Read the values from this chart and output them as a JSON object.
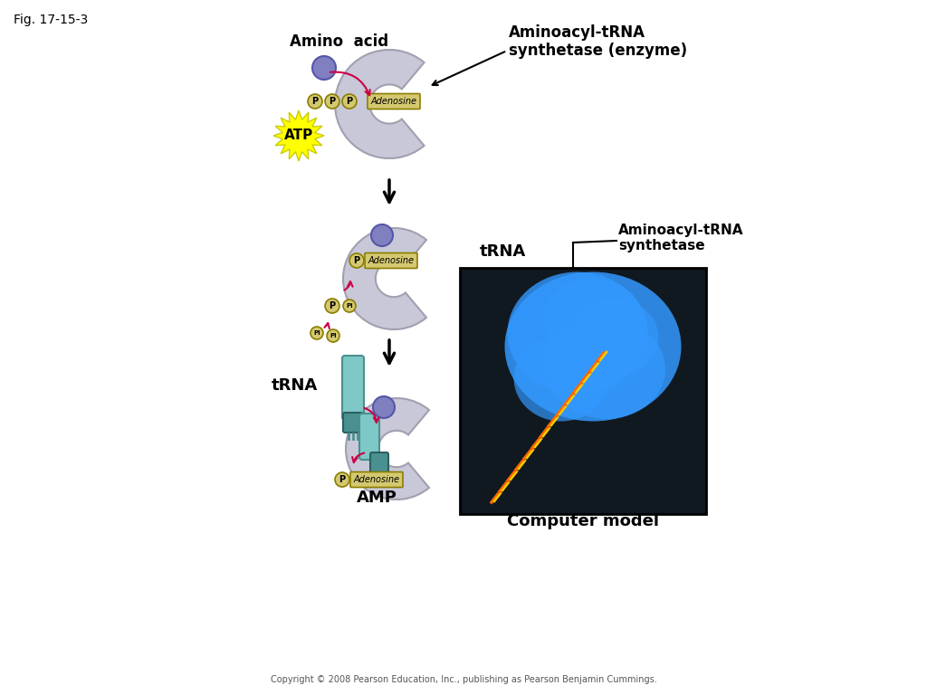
{
  "fig_label": "Fig. 17-15-3",
  "bg_color": "#ffffff",
  "copyright": "Copyright © 2008 Pearson Education, Inc., publishing as Pearson Benjamin Cummings.",
  "labels": {
    "amino_acid": "Amino  acid",
    "enzyme": "Aminoacyl-tRNA\nsynthetase (enzyme)",
    "atp": "ATP",
    "adenosine": "Adenosine",
    "trna1": "tRNA",
    "trna2": "tRNA",
    "amp": "AMP",
    "computer_model": "Computer model",
    "aminoacyl_trna": "Aminoacyl-tRNA\nsynthetase"
  },
  "colors": {
    "enzyme_shape": "#c8c8d8",
    "enzyme_outline": "#a0a0b0",
    "amino_acid": "#8080c0",
    "amino_acid_border": "#5555aa",
    "atp_star": "#ffff00",
    "atp_star_border": "#cccc00",
    "phosphate_bg": "#d4c870",
    "phosphate_border": "#8b7d00",
    "trna_body": "#7ec8c8",
    "trna_dark": "#4a9090",
    "trna_darker": "#2a6060",
    "arrow_black": "#000000",
    "arrow_red": "#cc0044",
    "computer_bg": "#101820",
    "blue_protein": "#3399ff",
    "dna_orange": "#ff6600",
    "dna_yellow": "#ffcc00",
    "label_line": "#000000"
  }
}
